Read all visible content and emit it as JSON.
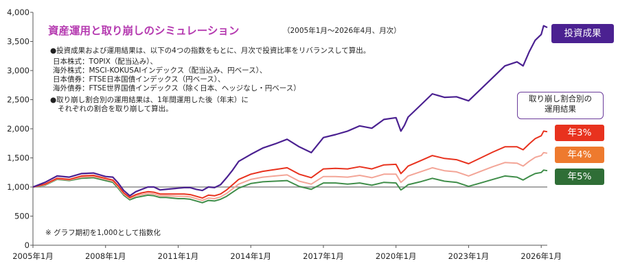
{
  "title": "資産運用と取り崩しのシミュレーション",
  "period": "（2005年1月～2026年4月、月次）",
  "description_lines": [
    "●投資成果および運用結果は、以下の4つの指数をもとに、月次で投資比率をリバランスして算出。",
    "日本株式：TOPIX（配当込み）、",
    "海外株式：MSCI-KOKUSAIインデックス（配当込み、円ベース）、",
    "日本債券：FTSE日本国債インデックス（円ベース）、",
    "海外債券：FTSE世界国債インデックス（除く日本、ヘッジなし・円ベース）",
    "●取り崩し割合別の運用結果は、1年間運用した後（年末）に",
    "それぞれの割合を取り崩して算出。"
  ],
  "note": "※ グラフ期初を1,000として指数化",
  "legend_box": "取り崩し割合別の\n運用結果",
  "colors": {
    "investment": "#4b2191",
    "w3": "#e8321e",
    "w4": "#f3a597",
    "w5": "#3f8d49",
    "baseline": "#8c8c8c",
    "title": "#b53ab0",
    "tag4": "#ee7a2e",
    "tag5": "#2f6e36"
  },
  "chart_data": {
    "type": "line",
    "title": "資産運用と取り崩しのシミュレーション",
    "xlabel": "",
    "ylabel": "",
    "xlim": [
      2005.0,
      2026.25
    ],
    "ylim": [
      0,
      4000
    ],
    "yticks": [
      0,
      500,
      1000,
      1500,
      2000,
      2500,
      3000,
      3500,
      4000
    ],
    "yticklabels": [
      "0",
      "500",
      "1,000",
      "1,500",
      "2,000",
      "2,500",
      "3,000",
      "3,500",
      "4,000"
    ],
    "xticks": [
      2005,
      2008,
      2011,
      2014,
      2017,
      2020,
      2023,
      2026
    ],
    "xticklabels": [
      "2005年1月",
      "2008年1月",
      "2011年1月",
      "2014年1月",
      "2017年1月",
      "2020年1月",
      "2023年1月",
      "2026年1月"
    ],
    "baseline": 1000,
    "grid": false,
    "series": [
      {
        "name": "投資成果",
        "key": "investment",
        "x": [
          2005.0,
          2005.5,
          2006.0,
          2006.5,
          2007.0,
          2007.5,
          2008.0,
          2008.3,
          2008.5,
          2008.75,
          2009.0,
          2009.25,
          2009.5,
          2009.75,
          2010.0,
          2010.25,
          2010.5,
          2011.0,
          2011.25,
          2011.5,
          2011.75,
          2012.0,
          2012.25,
          2012.5,
          2012.75,
          2013.0,
          2013.25,
          2013.5,
          2014.0,
          2014.5,
          2015.0,
          2015.5,
          2016.0,
          2016.5,
          2017.0,
          2017.5,
          2018.0,
          2018.5,
          2019.0,
          2019.5,
          2020.0,
          2020.2,
          2020.35,
          2020.5,
          2021.0,
          2021.5,
          2022.0,
          2022.5,
          2023.0,
          2023.5,
          2024.0,
          2024.5,
          2025.0,
          2025.25,
          2025.5,
          2025.75,
          2026.0,
          2026.1,
          2026.25
        ],
        "values": [
          1000,
          1080,
          1190,
          1170,
          1230,
          1240,
          1180,
          1170,
          1080,
          940,
          850,
          920,
          960,
          1000,
          1000,
          950,
          960,
          980,
          990,
          990,
          960,
          940,
          1000,
          990,
          1040,
          1160,
          1290,
          1440,
          1560,
          1670,
          1740,
          1820,
          1690,
          1590,
          1850,
          1900,
          1960,
          2050,
          2010,
          2160,
          2190,
          1960,
          2060,
          2200,
          2400,
          2600,
          2540,
          2550,
          2480,
          2680,
          2880,
          3080,
          3150,
          3080,
          3320,
          3520,
          3620,
          3770,
          3740
        ]
      },
      {
        "name": "年3%",
        "key": "w3",
        "x": [
          2005.0,
          2005.5,
          2006.0,
          2006.5,
          2007.0,
          2007.5,
          2008.0,
          2008.3,
          2008.5,
          2008.75,
          2009.0,
          2009.25,
          2009.5,
          2009.75,
          2010.0,
          2010.25,
          2010.5,
          2011.0,
          2011.25,
          2011.5,
          2011.75,
          2012.0,
          2012.25,
          2012.5,
          2012.75,
          2013.0,
          2013.25,
          2013.5,
          2014.0,
          2014.5,
          2015.0,
          2015.5,
          2016.0,
          2016.5,
          2017.0,
          2017.5,
          2018.0,
          2018.5,
          2019.0,
          2019.5,
          2020.0,
          2020.2,
          2020.35,
          2020.5,
          2021.0,
          2021.5,
          2022.0,
          2022.5,
          2023.0,
          2023.5,
          2024.0,
          2024.5,
          2025.0,
          2025.25,
          2025.5,
          2025.75,
          2026.0,
          2026.1,
          2026.25
        ],
        "values": [
          1000,
          1050,
          1150,
          1130,
          1190,
          1200,
          1150,
          1120,
          1030,
          900,
          820,
          870,
          900,
          920,
          910,
          880,
          880,
          880,
          880,
          870,
          840,
          810,
          860,
          850,
          880,
          950,
          1040,
          1130,
          1220,
          1270,
          1300,
          1330,
          1220,
          1160,
          1310,
          1320,
          1310,
          1350,
          1310,
          1380,
          1390,
          1230,
          1290,
          1360,
          1450,
          1540,
          1490,
          1470,
          1400,
          1500,
          1600,
          1690,
          1690,
          1640,
          1740,
          1830,
          1880,
          1960,
          1950
        ]
      },
      {
        "name": "年4%",
        "key": "w4",
        "x": [
          2005.0,
          2005.5,
          2006.0,
          2006.5,
          2007.0,
          2007.5,
          2008.0,
          2008.3,
          2008.5,
          2008.75,
          2009.0,
          2009.25,
          2009.5,
          2009.75,
          2010.0,
          2010.25,
          2010.5,
          2011.0,
          2011.25,
          2011.5,
          2011.75,
          2012.0,
          2012.25,
          2012.5,
          2012.75,
          2013.0,
          2013.25,
          2013.5,
          2014.0,
          2014.5,
          2015.0,
          2015.5,
          2016.0,
          2016.5,
          2017.0,
          2017.5,
          2018.0,
          2018.5,
          2019.0,
          2019.5,
          2020.0,
          2020.2,
          2020.35,
          2020.5,
          2021.0,
          2021.5,
          2022.0,
          2022.5,
          2023.0,
          2023.5,
          2024.0,
          2024.5,
          2025.0,
          2025.25,
          2025.5,
          2025.75,
          2026.0,
          2026.1,
          2026.25
        ],
        "values": [
          1000,
          1040,
          1140,
          1120,
          1170,
          1180,
          1130,
          1100,
          1010,
          880,
          800,
          850,
          870,
          890,
          880,
          850,
          850,
          840,
          840,
          830,
          800,
          770,
          810,
          800,
          830,
          890,
          970,
          1050,
          1130,
          1170,
          1190,
          1210,
          1100,
          1050,
          1180,
          1180,
          1170,
          1200,
          1160,
          1220,
          1220,
          1080,
          1130,
          1190,
          1260,
          1330,
          1280,
          1260,
          1190,
          1270,
          1350,
          1420,
          1410,
          1360,
          1440,
          1510,
          1540,
          1590,
          1580
        ]
      },
      {
        "name": "年5%",
        "key": "w5",
        "x": [
          2005.0,
          2005.5,
          2006.0,
          2006.5,
          2007.0,
          2007.5,
          2008.0,
          2008.3,
          2008.5,
          2008.75,
          2009.0,
          2009.25,
          2009.5,
          2009.75,
          2010.0,
          2010.25,
          2010.5,
          2011.0,
          2011.25,
          2011.5,
          2011.75,
          2012.0,
          2012.25,
          2012.5,
          2012.75,
          2013.0,
          2013.25,
          2013.5,
          2014.0,
          2014.5,
          2015.0,
          2015.5,
          2016.0,
          2016.5,
          2017.0,
          2017.5,
          2018.0,
          2018.5,
          2019.0,
          2019.5,
          2020.0,
          2020.2,
          2020.35,
          2020.5,
          2021.0,
          2021.5,
          2022.0,
          2022.5,
          2023.0,
          2023.5,
          2024.0,
          2024.5,
          2025.0,
          2025.25,
          2025.5,
          2025.75,
          2026.0,
          2026.1,
          2026.25
        ],
        "values": [
          1000,
          1030,
          1130,
          1110,
          1150,
          1160,
          1110,
          1080,
          990,
          860,
          780,
          820,
          840,
          860,
          850,
          820,
          820,
          800,
          800,
          790,
          760,
          730,
          770,
          760,
          790,
          840,
          910,
          980,
          1060,
          1090,
          1100,
          1110,
          1010,
          960,
          1070,
          1070,
          1050,
          1070,
          1030,
          1080,
          1070,
          950,
          990,
          1040,
          1090,
          1150,
          1100,
          1080,
          1010,
          1070,
          1130,
          1190,
          1170,
          1120,
          1180,
          1230,
          1250,
          1290,
          1280
        ]
      }
    ],
    "end_labels": [
      {
        "key": "investment",
        "text": "投資成果"
      },
      {
        "key": "w3",
        "text": "年3%"
      },
      {
        "key": "w4",
        "text": "年4%"
      },
      {
        "key": "w5",
        "text": "年5%"
      }
    ]
  }
}
